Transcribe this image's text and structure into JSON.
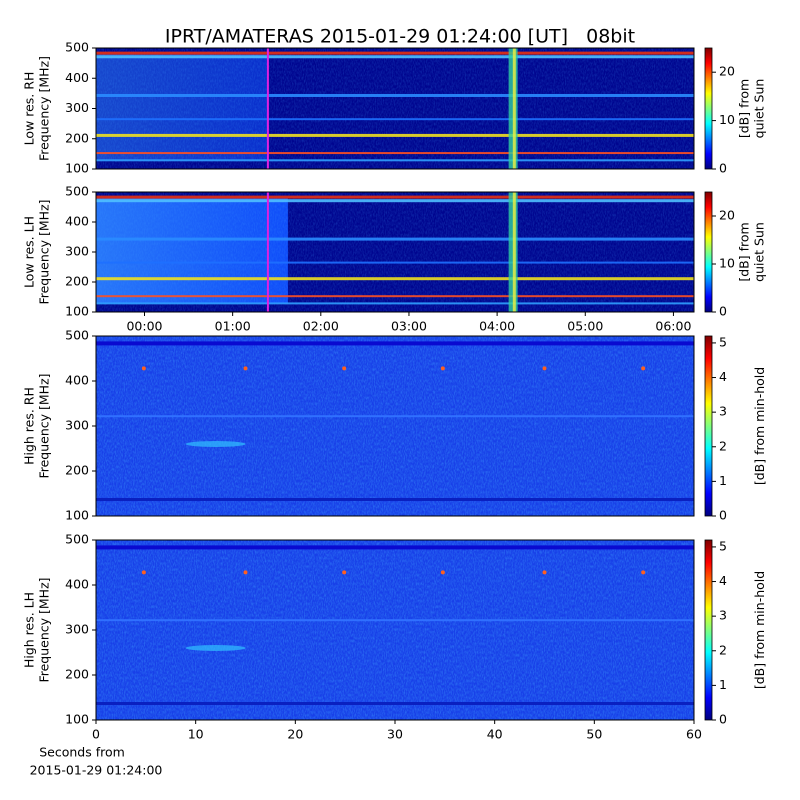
{
  "chart_data": [
    {
      "type": "heatmap",
      "title": "IPRT/AMATERAS 2015-01-29 01:24:00 [UT]   08bit",
      "ylabel": [
        "Low res. RH",
        "Frequency [MHz]"
      ],
      "ylim": [
        100,
        500
      ],
      "yticks": [
        100,
        200,
        300,
        400,
        500
      ],
      "xlim": [
        "23:27",
        "06:14"
      ],
      "cursor": "01:24",
      "cursor_color": "#e020e0",
      "colorbar_label": [
        "[dB] from",
        "quiet Sun"
      ],
      "clim": [
        0,
        25
      ],
      "cticks": [
        0,
        10,
        20
      ],
      "colormap": "jet"
    },
    {
      "type": "heatmap",
      "ylabel": [
        "Low res. LH",
        "Frequency [MHz]"
      ],
      "ylim": [
        100,
        500
      ],
      "yticks": [
        100,
        200,
        300,
        400,
        500
      ],
      "xlim": [
        "23:27",
        "06:14"
      ],
      "xticks": [
        "00:00",
        "01:00",
        "02:00",
        "03:00",
        "04:00",
        "05:00",
        "06:00"
      ],
      "cursor": "01:24",
      "cursor_color": "#e020e0",
      "colorbar_label": [
        "[dB] from",
        "quiet Sun"
      ],
      "clim": [
        0,
        25
      ],
      "cticks": [
        0,
        10,
        20
      ],
      "colormap": "jet"
    },
    {
      "type": "heatmap",
      "ylabel": [
        "High res. RH",
        "Frequency [MHz]"
      ],
      "ylim": [
        100,
        500
      ],
      "yticks": [
        100,
        200,
        300,
        400,
        500
      ],
      "xlim": [
        0,
        60
      ],
      "colorbar_label": [
        "[dB] from min-hold"
      ],
      "clim": [
        0,
        5.2
      ],
      "cticks": [
        0,
        1,
        2,
        3,
        4,
        5
      ],
      "colormap": "jet"
    },
    {
      "type": "heatmap",
      "ylabel": [
        "High res. LH",
        "Frequency [MHz]"
      ],
      "ylim": [
        100,
        500
      ],
      "yticks": [
        100,
        200,
        300,
        400,
        500
      ],
      "xlim": [
        0,
        60
      ],
      "xticks": [
        0,
        10,
        20,
        30,
        40,
        50,
        60
      ],
      "xlabel": [
        "Seconds from",
        "2015-01-29 01:24:00"
      ],
      "colorbar_label": [
        "[dB] from min-hold"
      ],
      "clim": [
        0,
        5.2
      ],
      "cticks": [
        0,
        1,
        2,
        3,
        4,
        5
      ],
      "colormap": "jet"
    }
  ]
}
